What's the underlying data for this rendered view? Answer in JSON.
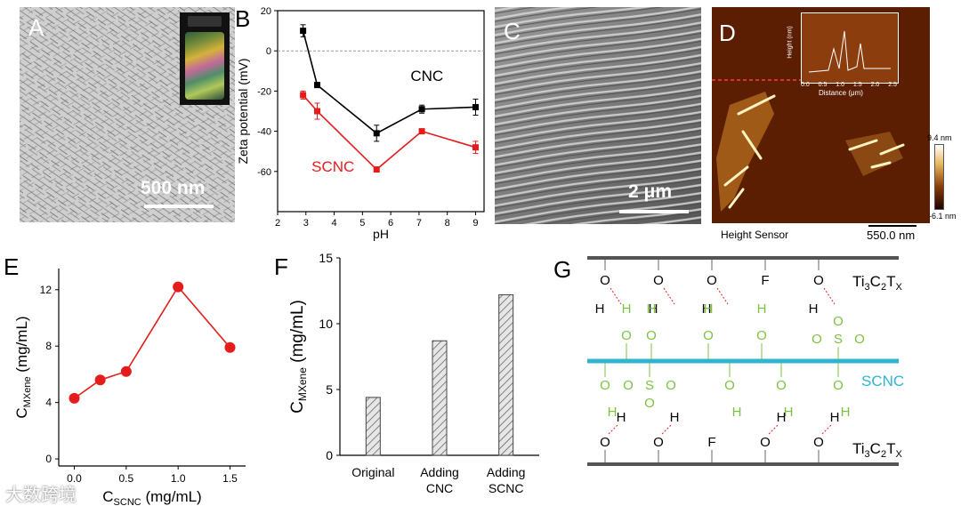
{
  "panels": {
    "a": {
      "label": "A",
      "scale_bar": "500 nm"
    },
    "b": {
      "label": "B",
      "legend": [
        "CNC",
        "SCNC"
      ]
    },
    "c": {
      "label": "C",
      "scale_bar": "2 μm"
    },
    "d": {
      "label": "D",
      "footer_left": "Height Sensor",
      "scale_bar": "550.0 nm",
      "colorbar_max": "9.4 nm",
      "colorbar_min": "-6.1 nm",
      "inset_ylabel": "Height (nm)",
      "inset_xlabel": "Distance (μm)",
      "inset_xticks": [
        "0.0",
        "0.5",
        "1.0",
        "1.5",
        "2.0",
        "2.5"
      ]
    },
    "e": {
      "label": "E"
    },
    "f": {
      "label": "F"
    },
    "g": {
      "label": "G",
      "layer_top": "Ti3C2TX",
      "layer_bottom": "Ti3C2TX",
      "middle": "SCNC",
      "top_groups": [
        "O",
        "O",
        "O",
        "F",
        "O"
      ],
      "bottom_groups": [
        "O",
        "O",
        "F",
        "O",
        "O"
      ],
      "sulfonate": [
        "O",
        "S",
        "O",
        "O"
      ],
      "hydrogen": "H"
    }
  },
  "watermark": "大数跨境",
  "chart_data": [
    {
      "id": "B",
      "type": "line",
      "xlabel": "pH",
      "ylabel": "Zeta potential (mV)",
      "xlim": [
        2,
        9.3
      ],
      "ylim": [
        -80,
        20
      ],
      "xticks": [
        2,
        3,
        4,
        5,
        6,
        7,
        8,
        9
      ],
      "yticks": [
        20,
        0,
        -20,
        -40,
        -60
      ],
      "reference_line": 0,
      "series": [
        {
          "name": "CNC",
          "color": "#000000",
          "x": [
            2.9,
            3.4,
            5.5,
            7.1,
            9.0
          ],
          "y": [
            10,
            -17,
            -41,
            -29,
            -28
          ],
          "err": [
            3,
            1,
            4,
            2,
            4
          ]
        },
        {
          "name": "SCNC",
          "color": "#e41c1c",
          "x": [
            2.9,
            3.4,
            5.5,
            7.1,
            9.0
          ],
          "y": [
            -22,
            -30,
            -59,
            -40,
            -48
          ],
          "err": [
            2,
            4,
            1,
            1,
            3
          ]
        }
      ]
    },
    {
      "id": "E",
      "type": "line",
      "xlabel": "C_SCNC (mg/mL)",
      "ylabel": "C_MXene (mg/mL)",
      "xlabel_main": "C",
      "xlabel_sub": "SCNC",
      "xlabel_unit": "(mg/mL)",
      "ylabel_main": "C",
      "ylabel_sub": "MXene",
      "ylabel_unit": "(mg/mL)",
      "xlim": [
        -0.15,
        1.65
      ],
      "ylim": [
        -0.5,
        13.5
      ],
      "xticks": [
        "0.0",
        "0.5",
        "1.0",
        "1.5"
      ],
      "yticks": [
        "0",
        "4",
        "8",
        "12"
      ],
      "series": [
        {
          "name": "C_MXene",
          "color": "#e41c1c",
          "x": [
            0.0,
            0.25,
            0.5,
            1.0,
            1.5
          ],
          "y": [
            4.3,
            5.6,
            6.2,
            12.2,
            7.9
          ]
        }
      ]
    },
    {
      "id": "F",
      "type": "bar",
      "ylabel": "C_MXene (mg/mL)",
      "ylabel_main": "C",
      "ylabel_sub": "MXene",
      "ylabel_unit": "(mg/mL)",
      "ylim": [
        0,
        15
      ],
      "yticks": [
        "0",
        "5",
        "10",
        "15"
      ],
      "categories": [
        "Original",
        "Adding CNC",
        "Adding SCNC"
      ],
      "values": [
        4.4,
        8.7,
        12.2
      ]
    }
  ]
}
